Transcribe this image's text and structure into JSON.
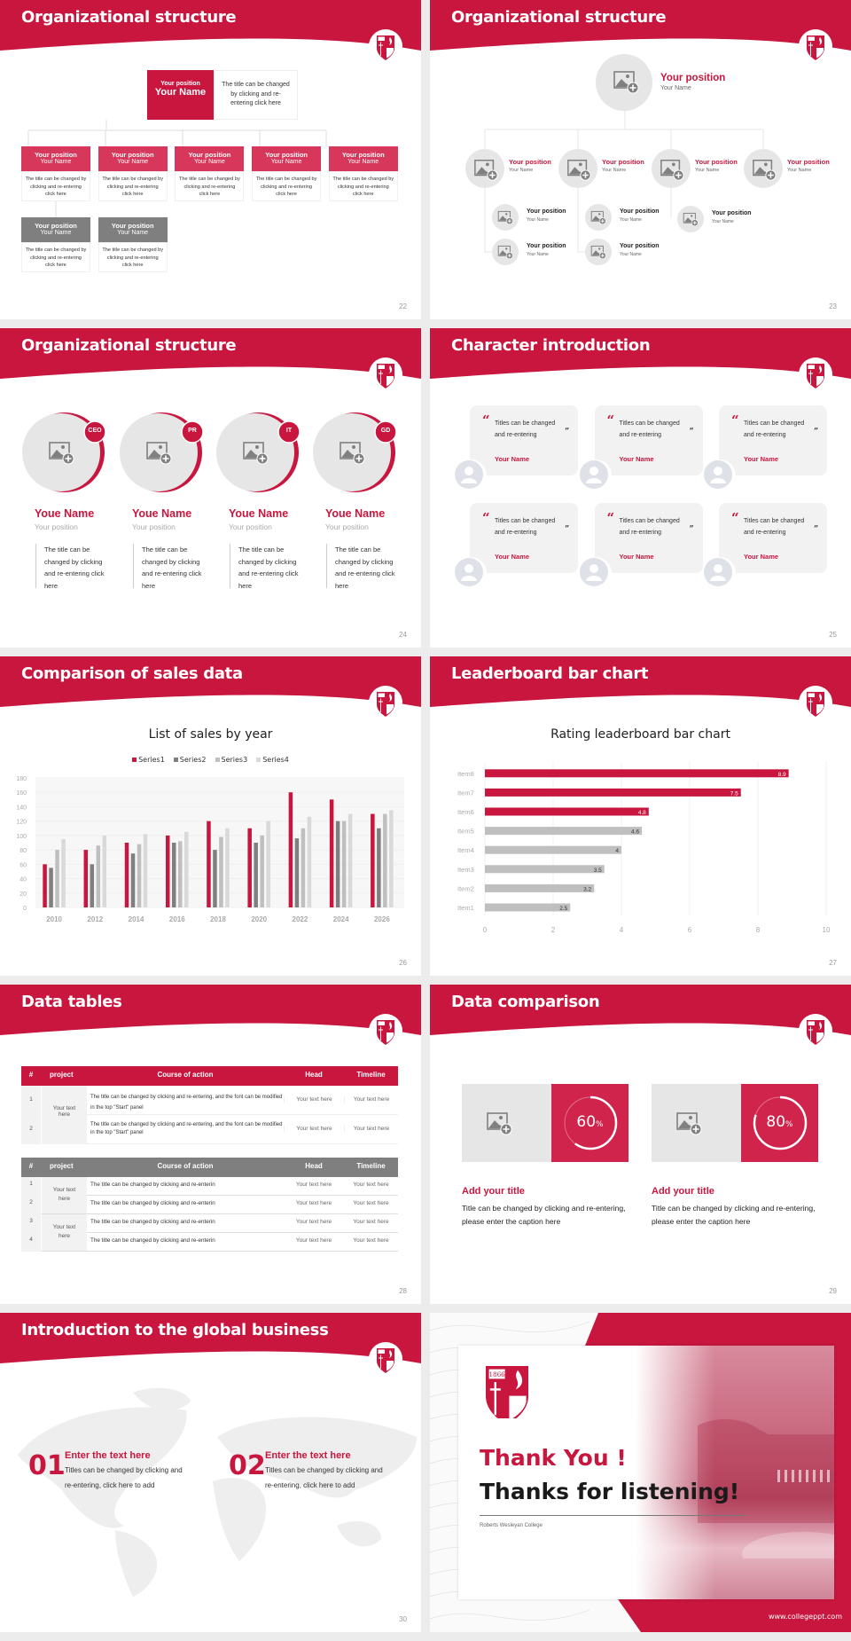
{
  "colors": {
    "accent": "#c8163e",
    "gray": "#7f7f7f",
    "light": "#e6e6e6"
  },
  "slides": [
    {
      "title": "Organizational structure",
      "page": "22",
      "top": {
        "position": "Your position",
        "name": "Your Name",
        "desc": "The title can be changed by clicking and re-entering click here"
      },
      "row1": [
        {
          "position": "Your position",
          "name": "Your Name",
          "desc": "The title can be changed by clicking and re-entering click here"
        },
        {
          "position": "Your position",
          "name": "Your Name",
          "desc": "The title can be changed by clicking and re-entering click here"
        },
        {
          "position": "Your position",
          "name": "Your Name",
          "desc": "The title can be changed by clicking and re-entering click here"
        },
        {
          "position": "Your position",
          "name": "Your Name",
          "desc": "The title can be changed by clicking and re-entering click here"
        },
        {
          "position": "Your position",
          "name": "Your Name",
          "desc": "The title can be changed by clicking and re-entering click here"
        }
      ],
      "row2": [
        {
          "position": "Your position",
          "name": "Your Name",
          "desc": "The title can be changed by clicking and re-entering click here"
        },
        {
          "position": "Your position",
          "name": "Your Name",
          "desc": "The title can be changed by clicking and re-entering click here"
        }
      ]
    },
    {
      "title": "Organizational structure",
      "page": "23",
      "top": {
        "position": "Your position",
        "name": "Your Name"
      },
      "level2": [
        {
          "position": "Your position",
          "name": "Your Name"
        },
        {
          "position": "Your position",
          "name": "Your Name"
        },
        {
          "position": "Your position",
          "name": "Your Name"
        },
        {
          "position": "Your position",
          "name": "Your Name"
        }
      ],
      "level3": [
        {
          "position": "Your position",
          "name": "Your Name"
        },
        {
          "position": "Your position",
          "name": "Your Name"
        },
        {
          "position": "Your position",
          "name": "Your Name"
        },
        {
          "position": "Your position",
          "name": "Your Name"
        },
        {
          "position": "Your position",
          "name": "Your Name"
        }
      ]
    },
    {
      "title": "Organizational structure",
      "page": "24",
      "people": [
        {
          "badge": "CEO",
          "name": "Youe Name",
          "position": "Your position",
          "desc": "The title can be changed by clicking and re-entering click here"
        },
        {
          "badge": "PR",
          "name": "Youe Name",
          "position": "Your position",
          "desc": "The title can be changed by clicking and re-entering click here"
        },
        {
          "badge": "IT",
          "name": "Youe Name",
          "position": "Your position",
          "desc": "The title can be changed by clicking and re-entering click here"
        },
        {
          "badge": "GD",
          "name": "Youe Name",
          "position": "Your position",
          "desc": "The title can be changed by clicking and re-entering click here"
        }
      ]
    },
    {
      "title": "Character introduction",
      "page": "25",
      "cards": [
        {
          "quote": "Titles can be changed and re-entering",
          "name": "Your Name"
        },
        {
          "quote": "Titles can be changed and re-entering",
          "name": "Your Name"
        },
        {
          "quote": "Titles can be changed and re-entering",
          "name": "Your Name"
        },
        {
          "quote": "Titles can be changed and re-entering",
          "name": "Your Name"
        },
        {
          "quote": "Titles can be changed and re-entering",
          "name": "Your Name"
        },
        {
          "quote": "Titles can be changed and re-entering",
          "name": "Your Name"
        }
      ]
    },
    {
      "title": "Comparison of sales data",
      "page": "26"
    },
    {
      "title": "Leaderboard bar chart",
      "page": "27"
    },
    {
      "title": "Data tables",
      "page": "28",
      "headers": [
        "#",
        "project",
        "Course of action",
        "Head",
        "Timeline"
      ],
      "table1": {
        "project": "Your text here",
        "rows": [
          {
            "n": "1",
            "action": "The title can be changed by clicking and re-entering, and the font can be modified in the top \"Start\" panel",
            "head": "Your text here",
            "timeline": "Your text here"
          },
          {
            "n": "2",
            "action": "The title can be changed by clicking and re-entering, and the font can be modified in the top \"Start\" panel",
            "head": "Your text here",
            "timeline": "Your text here"
          }
        ]
      },
      "table2": {
        "projects": [
          "Your text here",
          "Your text here"
        ],
        "rows": [
          {
            "n": "1",
            "action": "The title can be changed by clicking and re-enterin",
            "head": "Your text here",
            "timeline": "Your text here"
          },
          {
            "n": "2",
            "action": "The title can be changed by clicking and re-enterin",
            "head": "Your text here",
            "timeline": "Your text here"
          },
          {
            "n": "3",
            "action": "The title can be changed by clicking and re-enterin",
            "head": "Your text here",
            "timeline": "Your text here"
          },
          {
            "n": "4",
            "action": "The title can be changed by clicking and re-enterin",
            "head": "Your text here",
            "timeline": "Your text here"
          }
        ]
      }
    },
    {
      "title": "Data comparison",
      "page": "29",
      "items": [
        {
          "percent": 60,
          "value": "60",
          "unit": "%",
          "title": "Add your title",
          "text": "Title can be changed by clicking and re-entering, please enter the caption here"
        },
        {
          "percent": 80,
          "value": "80",
          "unit": "%",
          "title": "Add your title",
          "text": "Title can be changed by clicking and re-entering, please enter the caption here"
        }
      ]
    },
    {
      "title": "Introduction to the global business",
      "page": "30",
      "items": [
        {
          "num": "01",
          "title": "Enter the text here",
          "text": "Titles can be changed by clicking and re-entering, click here to add"
        },
        {
          "num": "02",
          "title": "Enter the text here",
          "text": "Titles can be changed by clicking and re-entering, click here to add"
        }
      ]
    },
    {
      "thanks": "Thank You !",
      "subtitle": "Thanks for listening!",
      "college": "Roberts Wesleyan College",
      "url": "www.collegeppt.com",
      "logo_year": "1866"
    }
  ],
  "chart_data": [
    {
      "type": "bar",
      "title": "List of sales by year",
      "categories": [
        "2010",
        "2012",
        "2014",
        "2016",
        "2018",
        "2020",
        "2022",
        "2024",
        "2026"
      ],
      "series": [
        {
          "name": "Series1",
          "color": "#c8163e",
          "values": [
            60,
            80,
            90,
            100,
            120,
            110,
            160,
            150,
            130
          ]
        },
        {
          "name": "Series2",
          "color": "#7f7f7f",
          "values": [
            55,
            60,
            75,
            90,
            80,
            90,
            96,
            120,
            110
          ]
        },
        {
          "name": "Series3",
          "color": "#bfbfbf",
          "values": [
            80,
            86,
            88,
            92,
            98,
            100,
            110,
            120,
            130
          ]
        },
        {
          "name": "Series4",
          "color": "#d9d9d9",
          "values": [
            95,
            100,
            102,
            105,
            110,
            120,
            126,
            130,
            135
          ]
        }
      ],
      "ylim": [
        0,
        180
      ],
      "yticks": [
        0,
        20,
        40,
        60,
        80,
        100,
        120,
        140,
        160,
        180
      ],
      "legend": "top",
      "grid": true
    },
    {
      "type": "bar",
      "orientation": "horizontal",
      "title": "Rating leaderboard bar chart",
      "categories": [
        "Item1",
        "Item2",
        "Item3",
        "Item4",
        "Item5",
        "Item6",
        "Item7",
        "Item8"
      ],
      "values": [
        2.5,
        3.2,
        3.5,
        4,
        4.6,
        4.8,
        7.5,
        8.9
      ],
      "labels": [
        "2.5",
        "3.2",
        "3.5",
        "4",
        "4.6",
        "4.8",
        "7.5",
        "8.9"
      ],
      "highlight_colors": [
        "#bfbfbf",
        "#bfbfbf",
        "#bfbfbf",
        "#bfbfbf",
        "#bfbfbf",
        "#c8163e",
        "#c8163e",
        "#c8163e"
      ],
      "xlim": [
        0,
        10
      ],
      "xticks": [
        0,
        2,
        4,
        6,
        8,
        10
      ],
      "grid": true
    }
  ]
}
